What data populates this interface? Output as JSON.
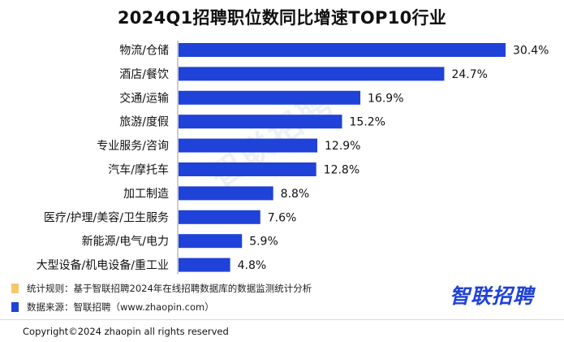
{
  "chart_data": {
    "type": "bar",
    "orientation": "horizontal",
    "title": "2024Q1招聘职位数同比增速TOP10行业",
    "categories": [
      "物流/仓储",
      "酒店/餐饮",
      "交通/运输",
      "旅游/度假",
      "专业服务/咨询",
      "汽车/摩托车",
      "加工制造",
      "医疗/护理/美容/卫生服务",
      "新能源/电气/电力",
      "大型设备/机电设备/重工业"
    ],
    "values": [
      30.4,
      24.7,
      16.9,
      15.2,
      12.9,
      12.8,
      8.8,
      7.6,
      5.9,
      4.8
    ],
    "value_labels": [
      "30.4%",
      "24.7%",
      "16.9%",
      "15.2%",
      "12.9%",
      "12.8%",
      "8.8%",
      "7.6%",
      "5.9%",
      "4.8%"
    ],
    "xlim": [
      0,
      30.4
    ],
    "grid": false,
    "bar_color": "#1f42d8"
  },
  "legend": {
    "items": [
      {
        "text": "统计规则：基于智联招聘2024年在线招聘数据库的数据监测统计分析",
        "color": "#f5c76b"
      },
      {
        "text": "数据来源：智联招聘（www.zhaopin.com）",
        "color": "#1f42d8"
      }
    ]
  },
  "watermark": "智联招聘",
  "brand_logo": "智联招聘",
  "copyright": "Copyright©2024 zhaopin all rights reserved"
}
